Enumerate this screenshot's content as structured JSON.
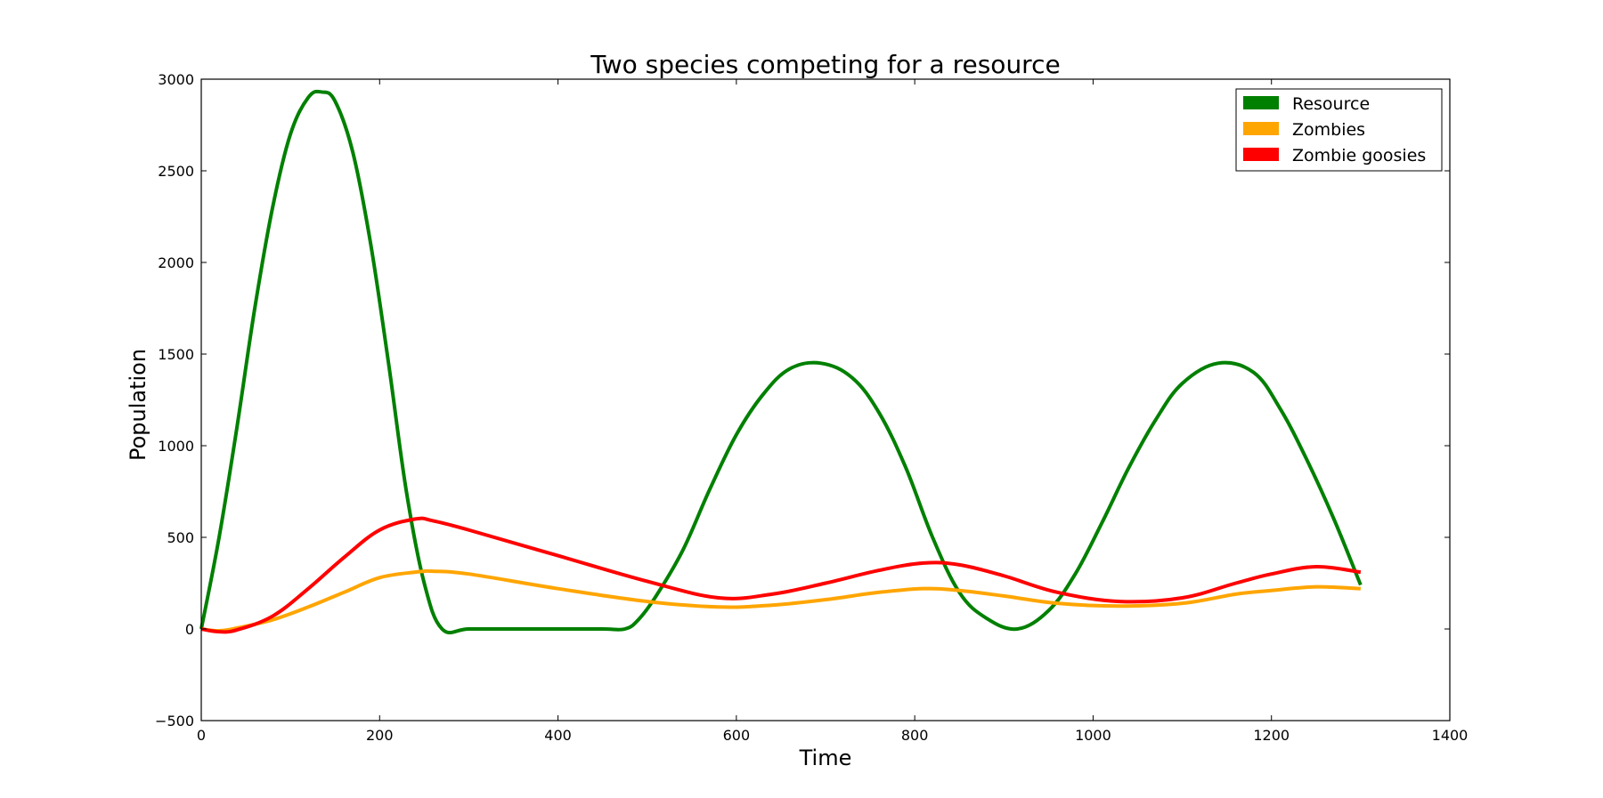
{
  "chart_data": {
    "type": "line",
    "title": "Two species competing for a resource",
    "xlabel": "Time",
    "ylabel": "Population",
    "xlim": [
      0,
      1400
    ],
    "ylim": [
      -500,
      3000
    ],
    "xticks": [
      0,
      200,
      400,
      600,
      800,
      1000,
      1200,
      1400
    ],
    "xtick_labels": [
      "0",
      "200",
      "400",
      "600",
      "800",
      "1000",
      "1200",
      "1400"
    ],
    "yticks": [
      -500,
      0,
      500,
      1000,
      1500,
      2000,
      2500,
      3000
    ],
    "ytick_labels": [
      "−500",
      "0",
      "500",
      "1000",
      "1500",
      "2000",
      "2500",
      "3000"
    ],
    "grid": false,
    "legend_position": "top-right",
    "series": [
      {
        "name": "Resource",
        "color": "#008000",
        "x": [
          0,
          20,
          40,
          60,
          80,
          100,
          120,
          135,
          150,
          170,
          190,
          210,
          230,
          250,
          270,
          300,
          350,
          400,
          450,
          475,
          490,
          510,
          540,
          570,
          600,
          630,
          660,
          695,
          730,
          760,
          790,
          820,
          850,
          880,
          915,
          950,
          980,
          1010,
          1040,
          1070,
          1100,
          1140,
          1180,
          1210,
          1240,
          1270,
          1300
        ],
        "y": [
          0,
          500,
          1100,
          1750,
          2300,
          2700,
          2900,
          2930,
          2880,
          2600,
          2100,
          1450,
          750,
          250,
          0,
          0,
          0,
          0,
          0,
          0,
          50,
          180,
          430,
          760,
          1060,
          1280,
          1420,
          1450,
          1370,
          1180,
          880,
          500,
          200,
          60,
          0,
          100,
          300,
          580,
          880,
          1140,
          1340,
          1450,
          1400,
          1200,
          920,
          600,
          240
        ]
      },
      {
        "name": "Zombies",
        "color": "#FFA500",
        "x": [
          0,
          20,
          40,
          80,
          120,
          160,
          200,
          240,
          260,
          300,
          400,
          500,
          580,
          640,
          700,
          760,
          810,
          850,
          900,
          960,
          1030,
          1100,
          1160,
          1200,
          1250,
          1300
        ],
        "y": [
          0,
          -10,
          5,
          50,
          120,
          200,
          280,
          310,
          315,
          300,
          220,
          150,
          120,
          130,
          160,
          200,
          220,
          210,
          180,
          140,
          125,
          140,
          190,
          210,
          230,
          220
        ]
      },
      {
        "name": "Zombie goosies",
        "color": "#FF0000",
        "x": [
          0,
          20,
          40,
          80,
          120,
          160,
          200,
          240,
          260,
          300,
          400,
          500,
          580,
          640,
          700,
          760,
          810,
          850,
          900,
          960,
          1030,
          1100,
          1160,
          1200,
          1250,
          1300
        ],
        "y": [
          0,
          -15,
          -5,
          70,
          220,
          390,
          540,
          600,
          590,
          540,
          400,
          260,
          170,
          190,
          250,
          320,
          360,
          350,
          290,
          200,
          150,
          170,
          250,
          300,
          340,
          310
        ]
      }
    ]
  }
}
